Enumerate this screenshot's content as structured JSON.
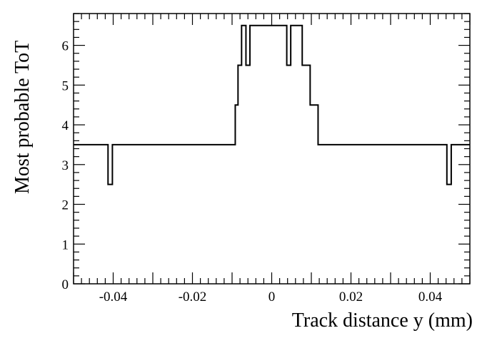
{
  "chart_data": {
    "type": "line",
    "step": true,
    "title": "",
    "xlabel": "Track distance y (mm)",
    "ylabel": "Most probable ToT",
    "xlim": [
      -0.05,
      0.05
    ],
    "ylim": [
      0,
      6.8
    ],
    "x_ticks": [
      -0.04,
      -0.02,
      0,
      0.02,
      0.04
    ],
    "x_tick_labels": [
      "-0.04",
      "-0.02",
      "0",
      "0.02",
      "0.04"
    ],
    "y_ticks": [
      0,
      1,
      2,
      3,
      4,
      5,
      6
    ],
    "y_tick_labels": [
      "0",
      "1",
      "2",
      "3",
      "4",
      "5",
      "6"
    ],
    "grid": false,
    "series": [
      {
        "bins": [
          {
            "x0": -0.05,
            "x1": -0.0413,
            "y": 3.5
          },
          {
            "x0": -0.0413,
            "x1": -0.0402,
            "y": 2.5
          },
          {
            "x0": -0.0402,
            "x1": -0.0092,
            "y": 3.5
          },
          {
            "x0": -0.0092,
            "x1": -0.0085,
            "y": 4.5
          },
          {
            "x0": -0.0085,
            "x1": -0.0076,
            "y": 5.5
          },
          {
            "x0": -0.0076,
            "x1": -0.0065,
            "y": 6.5
          },
          {
            "x0": -0.0065,
            "x1": -0.0055,
            "y": 5.5
          },
          {
            "x0": -0.0055,
            "x1": 0.0038,
            "y": 6.5
          },
          {
            "x0": 0.0038,
            "x1": 0.0048,
            "y": 5.5
          },
          {
            "x0": 0.0048,
            "x1": 0.0077,
            "y": 6.5
          },
          {
            "x0": 0.0077,
            "x1": 0.0097,
            "y": 5.5
          },
          {
            "x0": 0.0097,
            "x1": 0.0117,
            "y": 4.5
          },
          {
            "x0": 0.0117,
            "x1": 0.0442,
            "y": 3.5
          },
          {
            "x0": 0.0442,
            "x1": 0.0453,
            "y": 2.5
          },
          {
            "x0": 0.0453,
            "x1": 0.05,
            "y": 3.5
          }
        ]
      }
    ]
  }
}
